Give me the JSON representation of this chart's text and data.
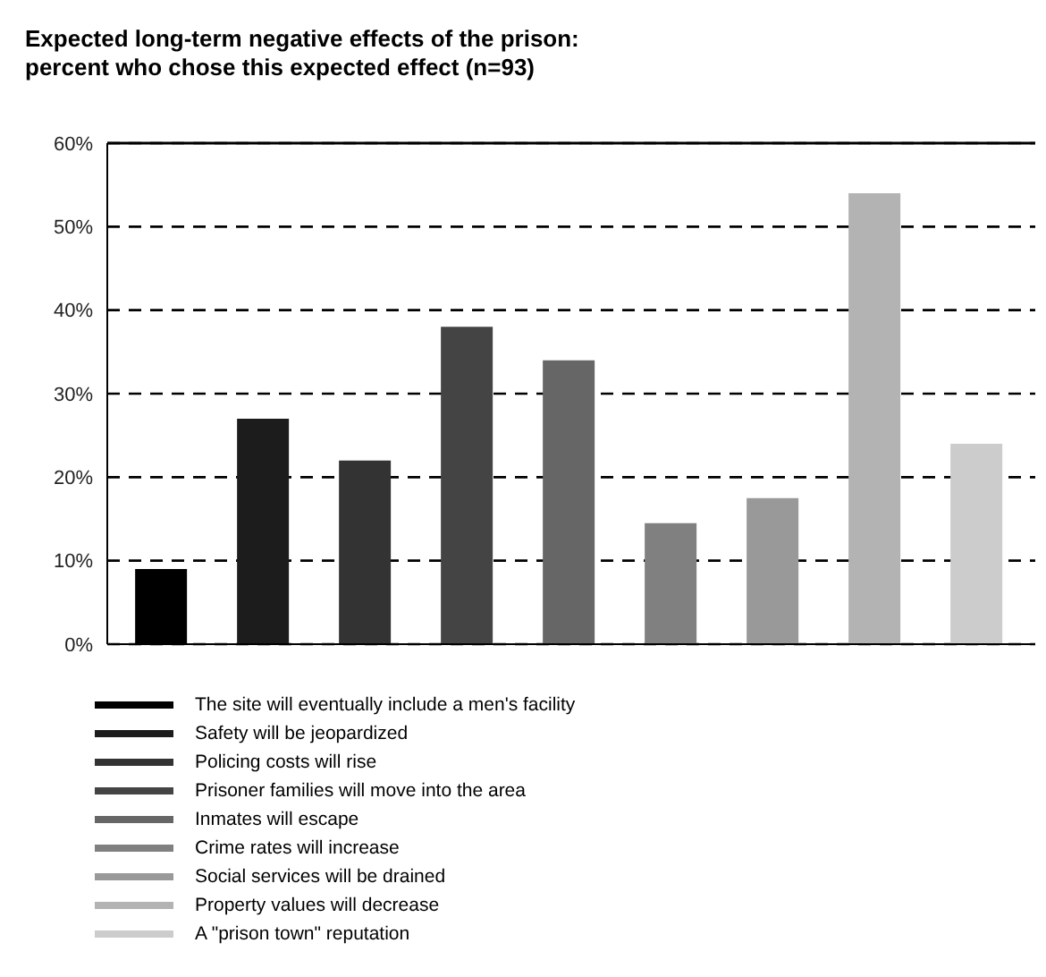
{
  "chart_data": {
    "type": "bar",
    "title": "Expected long-term negative effects of the prison:\npercent who chose this expected effect (n=93)",
    "categories": [
      null
    ],
    "series": [
      {
        "name": "The site will eventually include a men's facility",
        "color": "#000000",
        "values": [
          9
        ]
      },
      {
        "name": "Safety will be jeopardized",
        "color": "#1c1c1c",
        "values": [
          27
        ]
      },
      {
        "name": "Policing costs will rise",
        "color": "#333333",
        "values": [
          22
        ]
      },
      {
        "name": "Prisoner families will move into the area",
        "color": "#444444",
        "values": [
          38
        ]
      },
      {
        "name": "Inmates will escape",
        "color": "#666666",
        "values": [
          34
        ]
      },
      {
        "name": "Crime rates will increase",
        "color": "#808080",
        "values": [
          14.5
        ]
      },
      {
        "name": "Social services will be drained",
        "color": "#999999",
        "values": [
          17.5
        ]
      },
      {
        "name": "Property values will decrease",
        "color": "#b3b3b3",
        "values": [
          54
        ]
      },
      {
        "name": "A \"prison town\" reputation",
        "color": "#cccccc",
        "values": [
          24
        ]
      }
    ],
    "ylim": [
      0,
      60
    ],
    "yticks": [
      {
        "value": 0,
        "label": "0%"
      },
      {
        "value": 10,
        "label": "10%"
      },
      {
        "value": 20,
        "label": "20%"
      },
      {
        "value": 30,
        "label": "30%"
      },
      {
        "value": 40,
        "label": "40%"
      },
      {
        "value": 50,
        "label": "50%"
      },
      {
        "value": 60,
        "label": "60%"
      }
    ],
    "grid": "y",
    "legend": "bottom"
  }
}
